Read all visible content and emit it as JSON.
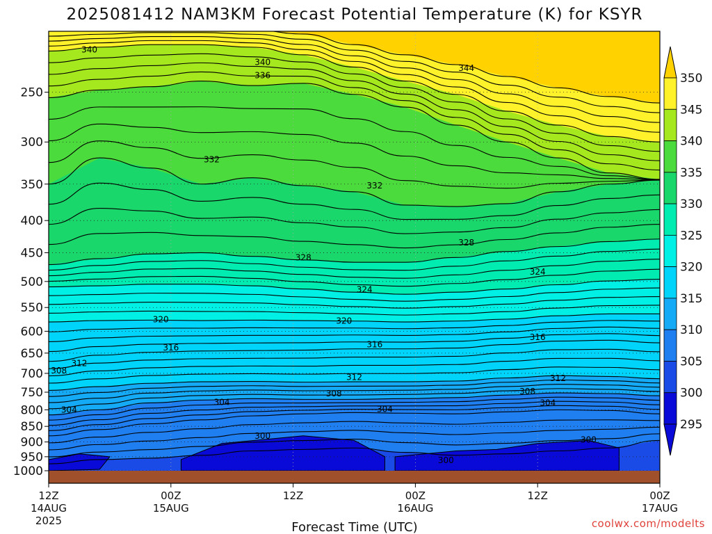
{
  "chart_data": {
    "type": "heatmap",
    "title": "2025081412 NAM3KM Forecast Potential Temperature (K) for KSYR",
    "xlabel": "Forecast Time (UTC)",
    "ylabel": "",
    "y_scale": "log",
    "ylim": [
      1000,
      200
    ],
    "xlim": [
      0,
      60
    ],
    "x_ticks": [
      {
        "value": 0,
        "label": "12Z",
        "sub": "14AUG",
        "sub2": "2025"
      },
      {
        "value": 12,
        "label": "00Z",
        "sub": "15AUG",
        "sub2": ""
      },
      {
        "value": 24,
        "label": "12Z",
        "sub": "",
        "sub2": ""
      },
      {
        "value": 36,
        "label": "00Z",
        "sub": "16AUG",
        "sub2": ""
      },
      {
        "value": 48,
        "label": "12Z",
        "sub": "",
        "sub2": ""
      },
      {
        "value": 60,
        "label": "00Z",
        "sub": "17AUG",
        "sub2": ""
      }
    ],
    "y_ticks": [
      "250",
      "300",
      "350",
      "400",
      "450",
      "500",
      "550",
      "600",
      "650",
      "700",
      "750",
      "800",
      "850",
      "900",
      "950",
      "1000"
    ],
    "colorbar": {
      "labels": [
        "350",
        "345",
        "340",
        "335",
        "330",
        "325",
        "320",
        "315",
        "310",
        "305",
        "300",
        "295"
      ],
      "levels": [
        295,
        300,
        305,
        310,
        315,
        320,
        325,
        330,
        335,
        340,
        345,
        350
      ],
      "colors": [
        "#0a0ad8",
        "#1a4be6",
        "#1f7ef0",
        "#14aaf5",
        "#00d4fa",
        "#00f0e6",
        "#00ecb0",
        "#19d76a",
        "#4bdb3c",
        "#a5e81e",
        "#fff22a",
        "#ffd200"
      ]
    },
    "contours": [
      {
        "level": 300,
        "p": [
          975,
          960,
          955,
          945,
          930,
          925,
          920,
          935,
          945,
          940,
          930,
          920,
          895
        ]
      },
      {
        "level": 304,
        "p": [
          880,
          860,
          842,
          830,
          818,
          812,
          808,
          810,
          812,
          806,
          800,
          802,
          812
        ]
      },
      {
        "level": 308,
        "p": [
          815,
          800,
          780,
          772,
          768,
          770,
          770,
          768,
          765,
          758,
          752,
          754,
          760
        ]
      },
      {
        "level": 312,
        "p": [
          745,
          735,
          726,
          722,
          721,
          723,
          722,
          722,
          720,
          712,
          706,
          708,
          714
        ]
      },
      {
        "level": 316,
        "p": [
          670,
          655,
          648,
          645,
          644,
          643,
          640,
          640,
          638,
          630,
          622,
          620,
          626
        ]
      },
      {
        "level": 320,
        "p": [
          580,
          577,
          576,
          577,
          576,
          577,
          578,
          580,
          578,
          574,
          567,
          563,
          563
        ]
      },
      {
        "level": 324,
        "p": [
          510,
          508,
          505,
          505,
          508,
          514,
          520,
          524,
          520,
          514,
          506,
          499,
          496
        ]
      },
      {
        "level": 328,
        "p": [
          470,
          460,
          452,
          450,
          456,
          462,
          466,
          466,
          458,
          448,
          440,
          432,
          428
        ]
      },
      {
        "level": 332,
        "p": [
          350,
          318,
          330,
          350,
          342,
          352,
          360,
          378,
          380,
          376,
          360,
          350,
          345
        ]
      },
      {
        "level": 336,
        "p": [
          255,
          248,
          245,
          240,
          244,
          242,
          252,
          264,
          282,
          300,
          318,
          336,
          344
        ]
      },
      {
        "level": 340,
        "p": [
          215,
          212,
          210,
          210,
          212,
          218,
          228,
          240,
          252,
          268,
          282,
          294,
          300
        ]
      },
      {
        "level": 344,
        "p": [
          200,
          199,
          198,
          198,
          199,
          202,
          210,
          218,
          226,
          236,
          246,
          254,
          260
        ]
      }
    ],
    "contour_x": [
      0,
      5,
      10,
      15,
      20,
      25,
      30,
      35,
      40,
      45,
      50,
      55,
      60
    ],
    "contour_labels": [
      {
        "text": "340",
        "x": 4,
        "p": 214
      },
      {
        "text": "340",
        "x": 21,
        "p": 224
      },
      {
        "text": "336",
        "x": 21,
        "p": 235
      },
      {
        "text": "344",
        "x": 41,
        "p": 229
      },
      {
        "text": "332",
        "x": 16,
        "p": 320
      },
      {
        "text": "332",
        "x": 32,
        "p": 352
      },
      {
        "text": "328",
        "x": 25,
        "p": 458
      },
      {
        "text": "328",
        "x": 41,
        "p": 434
      },
      {
        "text": "324",
        "x": 31,
        "p": 515
      },
      {
        "text": "324",
        "x": 48,
        "p": 483
      },
      {
        "text": "320",
        "x": 11,
        "p": 575
      },
      {
        "text": "320",
        "x": 29,
        "p": 578
      },
      {
        "text": "316",
        "x": 12,
        "p": 637
      },
      {
        "text": "316",
        "x": 32,
        "p": 630
      },
      {
        "text": "316",
        "x": 48,
        "p": 613
      },
      {
        "text": "312",
        "x": 3,
        "p": 675
      },
      {
        "text": "312",
        "x": 30,
        "p": 710
      },
      {
        "text": "312",
        "x": 50,
        "p": 713
      },
      {
        "text": "308",
        "x": 1,
        "p": 693
      },
      {
        "text": "308",
        "x": 28,
        "p": 754
      },
      {
        "text": "308",
        "x": 47,
        "p": 748
      },
      {
        "text": "304",
        "x": 2,
        "p": 800
      },
      {
        "text": "304",
        "x": 17,
        "p": 778
      },
      {
        "text": "304",
        "x": 33,
        "p": 798
      },
      {
        "text": "304",
        "x": 49,
        "p": 780
      },
      {
        "text": "300",
        "x": 21,
        "p": 880
      },
      {
        "text": "300",
        "x": 39,
        "p": 962
      },
      {
        "text": "300",
        "x": 53,
        "p": 893
      }
    ],
    "ground_color": "#a0502a"
  },
  "credit": "coolwx.com/modelts"
}
